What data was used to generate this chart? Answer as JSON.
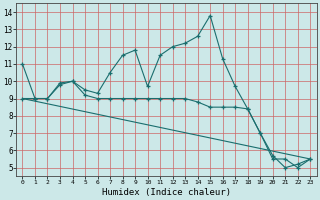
{
  "title": "",
  "xlabel": "Humidex (Indice chaleur)",
  "bg_color": "#cce8e8",
  "grid_color": "#cc6666",
  "line_color": "#1a6e6e",
  "xlim": [
    -0.5,
    23.5
  ],
  "ylim": [
    4.5,
    14.5
  ],
  "xticks": [
    0,
    1,
    2,
    3,
    4,
    5,
    6,
    7,
    8,
    9,
    10,
    11,
    12,
    13,
    14,
    15,
    16,
    17,
    18,
    19,
    20,
    21,
    22,
    23
  ],
  "yticks": [
    5,
    6,
    7,
    8,
    9,
    10,
    11,
    12,
    13,
    14
  ],
  "line1_x": [
    0,
    1,
    2,
    3,
    4,
    5,
    6,
    7,
    8,
    9,
    10,
    11,
    12,
    13,
    14,
    15,
    16,
    17,
    18,
    19,
    20,
    21,
    22,
    23
  ],
  "line1_y": [
    11,
    9,
    9,
    9.8,
    10,
    9.5,
    9.3,
    10.5,
    11.5,
    11.8,
    9.7,
    11.5,
    12,
    12.2,
    12.6,
    13.8,
    11.3,
    9.7,
    8.4,
    7,
    5.7,
    5,
    5.2,
    5.5
  ],
  "line2_x": [
    0,
    1,
    2,
    3,
    4,
    5,
    6,
    7,
    8,
    9,
    10,
    11,
    12,
    13,
    14,
    15,
    16,
    17,
    18,
    19,
    20,
    21,
    22,
    23
  ],
  "line2_y": [
    9,
    9,
    9,
    9.9,
    10,
    9.2,
    9.0,
    9.0,
    9.0,
    9.0,
    9.0,
    9.0,
    9.0,
    9.0,
    8.8,
    8.5,
    8.5,
    8.5,
    8.4,
    7.0,
    5.5,
    5.5,
    5.0,
    5.5
  ],
  "line3_x": [
    0,
    23
  ],
  "line3_y": [
    9.0,
    5.5
  ]
}
